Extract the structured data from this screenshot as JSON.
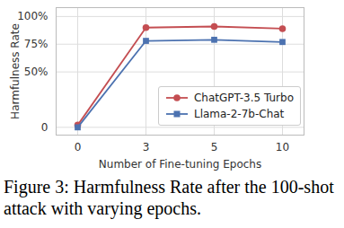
{
  "chart_data": {
    "type": "line",
    "caption": "Figure 3: Harmfulness Rate after the 100-shot attack with varying epochs.",
    "x_label": "Number of Fine-tuning Epochs",
    "y_label": "Harmfulness Rate",
    "categories": [
      "0",
      "3",
      "5",
      "10"
    ],
    "series": [
      {
        "name": "ChatGPT-3.5 Turbo",
        "color": "#c44e52",
        "marker": "circle",
        "values": [
          2,
          90,
          91,
          89
        ]
      },
      {
        "name": "Llama-2-7b-Chat",
        "color": "#4c72b0",
        "marker": "square",
        "values": [
          0,
          78,
          79,
          77
        ]
      }
    ],
    "ylim": [
      -7,
      108
    ],
    "yticks": [
      0,
      {
        "value": 50,
        "label": "50%"
      },
      {
        "value": 75,
        "label": "75%"
      },
      {
        "value": 100,
        "label": "100%"
      }
    ],
    "grid": true,
    "legend": "lower right"
  }
}
